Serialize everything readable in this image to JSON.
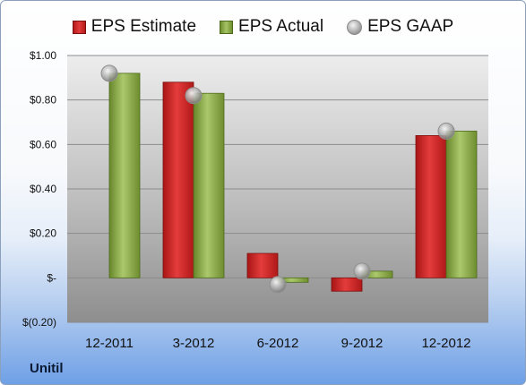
{
  "company": "Unitil",
  "legend": {
    "estimate": "EPS Estimate",
    "actual": "EPS Actual",
    "gaap": "EPS GAAP"
  },
  "colors": {
    "estimate": "#d42a2a",
    "actual": "#8fb04a",
    "gaap": "#b0b0b0"
  },
  "chart_data": {
    "type": "bar",
    "categories": [
      "12-2011",
      "3-2012",
      "6-2012",
      "9-2012",
      "12-2012"
    ],
    "series": [
      {
        "name": "EPS Estimate",
        "kind": "bar",
        "values": [
          null,
          0.88,
          0.11,
          -0.06,
          0.64
        ]
      },
      {
        "name": "EPS Actual",
        "kind": "bar",
        "values": [
          0.92,
          0.83,
          -0.02,
          0.03,
          0.66
        ]
      },
      {
        "name": "EPS GAAP",
        "kind": "marker",
        "values": [
          0.92,
          0.82,
          -0.03,
          0.03,
          0.66
        ]
      }
    ],
    "yticks": [
      {
        "value": 1.0,
        "label": "$1.00"
      },
      {
        "value": 0.8,
        "label": "$0.80"
      },
      {
        "value": 0.6,
        "label": "$0.60"
      },
      {
        "value": 0.4,
        "label": "$0.40"
      },
      {
        "value": 0.2,
        "label": "$0.20"
      },
      {
        "value": 0.0,
        "label": "$-"
      },
      {
        "value": -0.2,
        "label": "$(0.20)"
      }
    ],
    "ylim": [
      -0.2,
      1.0
    ],
    "grid": true,
    "legend_position": "top"
  }
}
